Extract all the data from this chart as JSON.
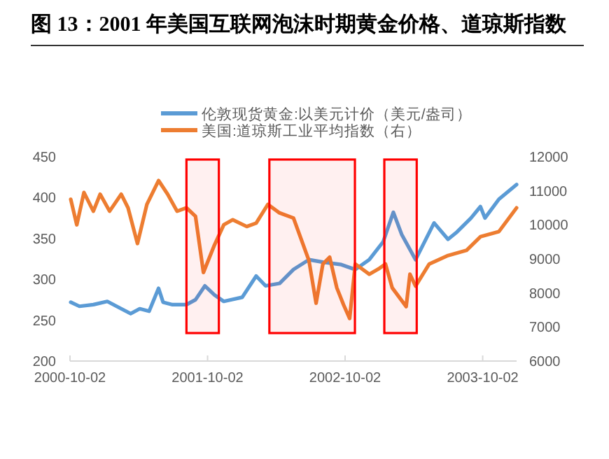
{
  "chart_data": {
    "type": "line",
    "title": "图 13：2001 年美国互联网泡沫时期黄金价格、道琼斯指数",
    "xlim": [
      "2000-10-02",
      "2003-12-31"
    ],
    "xticks": [
      "2000-10-02",
      "2001-10-02",
      "2002-10-02",
      "2003-10-02"
    ],
    "ylim": [
      200,
      450
    ],
    "yticks": [
      200,
      250,
      300,
      350,
      400,
      450
    ],
    "y2lim": [
      6000,
      12000
    ],
    "y2ticks": [
      6000,
      7000,
      8000,
      9000,
      10000,
      11000,
      12000
    ],
    "legend": "top",
    "grid": false,
    "series": [
      {
        "name": "伦敦现货黄金:以美元计价（美元/盎司）",
        "color": "#5b9bd5",
        "x": [
          "2000-10-04",
          "2000-10-27",
          "2000-12-03",
          "2001-01-09",
          "2001-02-15",
          "2001-03-12",
          "2001-04-05",
          "2001-04-30",
          "2001-05-25",
          "2001-06-06",
          "2001-07-01",
          "2001-08-07",
          "2001-08-31",
          "2001-09-25",
          "2001-10-20",
          "2001-11-14",
          "2002-01-02",
          "2002-02-08",
          "2002-03-05",
          "2002-04-11",
          "2002-05-18",
          "2002-06-28",
          "2002-08-04",
          "2002-09-22",
          "2002-10-29",
          "2002-12-05",
          "2003-01-11",
          "2003-02-07",
          "2003-03-01",
          "2003-04-07",
          "2003-05-26",
          "2003-07-02",
          "2003-07-26",
          "2003-09-01",
          "2003-09-26",
          "2003-10-08",
          "2003-11-14",
          "2003-12-31"
        ],
        "values": [
          272,
          267,
          269,
          273,
          264,
          258,
          264,
          261,
          289,
          272,
          269,
          269,
          275,
          292,
          281,
          273,
          278,
          304,
          292,
          295,
          312,
          324,
          321,
          318,
          312,
          324,
          346,
          382,
          355,
          324,
          369,
          349,
          358,
          375,
          389,
          375,
          398,
          416
        ]
      },
      {
        "name": "美国:道琼斯工业平均指数（右）",
        "color": "#ed7d31",
        "axis": "y2",
        "x": [
          "2000-10-04",
          "2000-10-20",
          "2000-11-08",
          "2000-12-03",
          "2000-12-21",
          "2001-01-15",
          "2001-02-15",
          "2001-03-05",
          "2001-03-30",
          "2001-04-24",
          "2001-05-25",
          "2001-06-18",
          "2001-07-13",
          "2001-08-07",
          "2001-08-31",
          "2001-09-21",
          "2001-10-20",
          "2001-11-14",
          "2001-12-08",
          "2002-01-14",
          "2002-02-08",
          "2002-03-11",
          "2002-04-11",
          "2002-05-18",
          "2002-06-28",
          "2002-07-17",
          "2002-08-04",
          "2002-08-22",
          "2002-09-10",
          "2002-09-28",
          "2002-10-14",
          "2002-10-29",
          "2002-12-05",
          "2002-12-29",
          "2003-01-17",
          "2003-02-04",
          "2003-03-13",
          "2003-03-23",
          "2003-04-07",
          "2003-05-13",
          "2003-07-02",
          "2003-08-20",
          "2003-09-26",
          "2003-11-14",
          "2003-12-31"
        ],
        "values": [
          10750,
          10000,
          10950,
          10400,
          10900,
          10400,
          10900,
          10500,
          9450,
          10600,
          11300,
          10900,
          10400,
          10500,
          10250,
          8600,
          9400,
          10000,
          10150,
          9950,
          10050,
          10600,
          10350,
          10200,
          8950,
          7700,
          8850,
          9050,
          8150,
          7650,
          7250,
          8850,
          8550,
          8700,
          8850,
          8150,
          7600,
          8550,
          8200,
          8850,
          9100,
          9250,
          9650,
          9800,
          10500
        ]
      }
    ],
    "bands": [
      {
        "axis": "x",
        "from": "2001-08-07",
        "to": "2001-11-01",
        "color": "#ff0000"
      },
      {
        "axis": "x",
        "from": "2002-03-15",
        "to": "2002-10-28",
        "color": "#ff0000"
      },
      {
        "axis": "x",
        "from": "2003-01-14",
        "to": "2003-04-10",
        "color": "#ff0000"
      }
    ]
  }
}
